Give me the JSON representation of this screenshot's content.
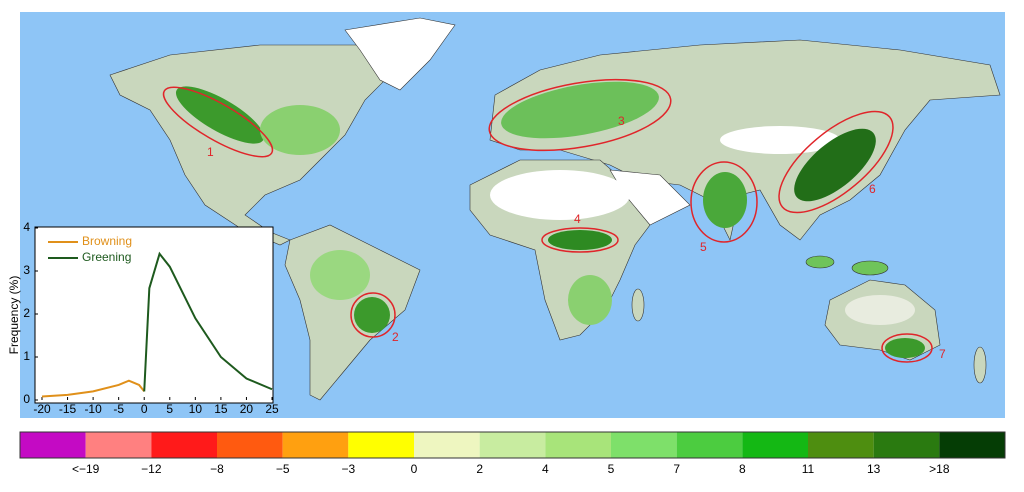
{
  "map": {
    "regions": [
      {
        "label": "1"
      },
      {
        "label": "2"
      },
      {
        "label": "3"
      },
      {
        "label": "4"
      },
      {
        "label": "5"
      },
      {
        "label": "6"
      },
      {
        "label": "7"
      }
    ]
  },
  "colorbar": {
    "colors": [
      "#c40ac4",
      "#ff8080",
      "#ff1a1a",
      "#ff5a10",
      "#ffa010",
      "#ffff00",
      "#eef6c0",
      "#c8eca0",
      "#a8e47a",
      "#7ee06a",
      "#4ccc40",
      "#14b814",
      "#4e8e10",
      "#2a7a10",
      "#053d05"
    ],
    "labels": [
      "<−19",
      "−12",
      "−8",
      "−5",
      "−3",
      "0",
      "2",
      "4",
      "5",
      "7",
      "8",
      "11",
      "13",
      ">18"
    ]
  },
  "chart_data": {
    "type": "line",
    "ylabel": "Frequency (%)",
    "x": [
      -20,
      -15,
      -10,
      -5,
      -3,
      -1,
      0,
      1,
      3,
      5,
      10,
      15,
      20,
      25
    ],
    "series": [
      {
        "name": "Browning",
        "color": "#e0901a",
        "values": [
          0.08,
          0.12,
          0.2,
          0.35,
          0.45,
          0.35,
          0.2,
          null,
          null,
          null,
          null,
          null,
          null,
          null
        ]
      },
      {
        "name": "Greening",
        "color": "#1e5a1e",
        "values": [
          null,
          null,
          null,
          null,
          null,
          null,
          0.2,
          2.6,
          3.4,
          3.1,
          1.9,
          1.0,
          0.5,
          0.25
        ]
      }
    ],
    "xlim": [
      -20,
      25
    ],
    "xticks": [
      -20,
      -15,
      -10,
      -5,
      0,
      5,
      10,
      15,
      20,
      25
    ],
    "ylim": [
      0,
      4
    ],
    "yticks": [
      0,
      1,
      2,
      3,
      4
    ]
  }
}
